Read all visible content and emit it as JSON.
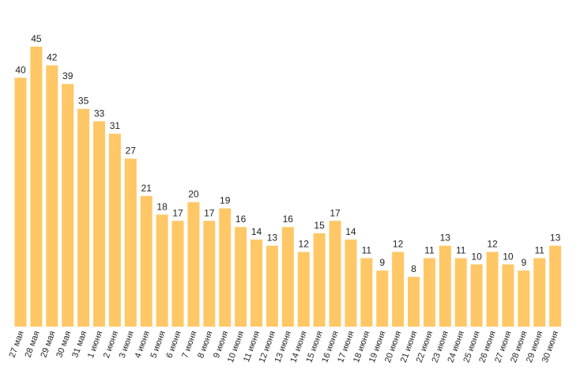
{
  "chart_data": {
    "type": "bar",
    "title": "",
    "xlabel": "",
    "ylabel": "",
    "ylim": [
      0,
      45
    ],
    "grid": false,
    "legend": "none",
    "bar_color": "#FFC766",
    "categories": [
      "27 мая",
      "28 мая",
      "29 мая",
      "30 мая",
      "31 мая",
      "1 июня",
      "2 июня",
      "3 июня",
      "4 июня",
      "5 июня",
      "6 июня",
      "7 июня",
      "8 июня",
      "9 июня",
      "10 июня",
      "11 июня",
      "12 июня",
      "13 июня",
      "14 июня",
      "15 июня",
      "16 июня",
      "17 июня",
      "18 июня",
      "19 июня",
      "20 июня",
      "21 июня",
      "22 июня",
      "23 июня",
      "24 июня",
      "25 июня",
      "26 июня",
      "27 июня",
      "28 июня",
      "29 июня",
      "30 июня"
    ],
    "values": [
      40,
      45,
      42,
      39,
      35,
      33,
      31,
      27,
      21,
      18,
      17,
      20,
      17,
      19,
      16,
      14,
      13,
      16,
      12,
      15,
      17,
      14,
      11,
      9,
      12,
      8,
      11,
      13,
      11,
      10,
      12,
      10,
      9,
      11,
      13
    ]
  }
}
